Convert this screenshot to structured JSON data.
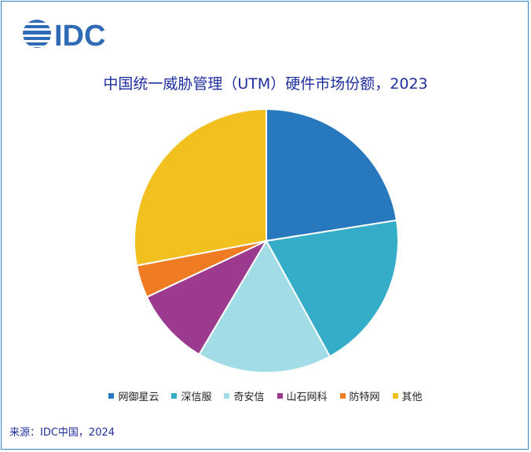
{
  "logo": {
    "text": "IDC",
    "color": "#2f6cb5"
  },
  "source": "来源：IDC中国，2024",
  "chart_data": {
    "type": "pie",
    "title": "中国统一威胁管理（UTM）硬件市场份额，2023",
    "legend_position": "bottom",
    "slices": [
      {
        "label": "网御星云",
        "value": 22.5,
        "color": "#2878be"
      },
      {
        "label": "深信服",
        "value": 19.5,
        "color": "#35adc9"
      },
      {
        "label": "奇安信",
        "value": 16.5,
        "color": "#a2dce7"
      },
      {
        "label": "山石网科",
        "value": 9.5,
        "color": "#9b3a8e"
      },
      {
        "label": "防特网",
        "value": 4.0,
        "color": "#ef7b22"
      },
      {
        "label": "其他",
        "value": 28.0,
        "color": "#f2c01f"
      }
    ]
  }
}
